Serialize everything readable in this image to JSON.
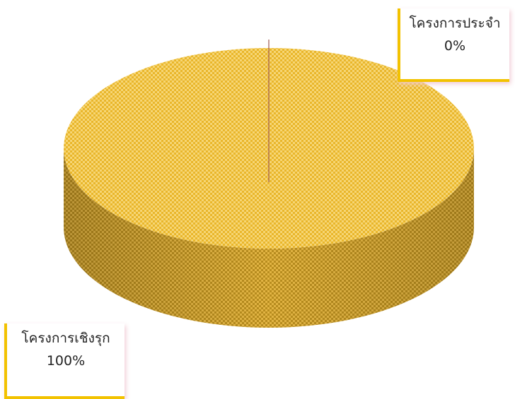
{
  "chart_data": {
    "type": "pie",
    "categories": [
      "โครงการเชิงรุก",
      "โครงการประจำ"
    ],
    "values": [
      100,
      0
    ],
    "data_labels": [
      {
        "name": "โครงการเชิงรุก",
        "percent": "100%"
      },
      {
        "name": "โครงการประจำ",
        "percent": "0%"
      }
    ],
    "style": "3d",
    "fill_color": "#f0c43a",
    "fill_color_dark": "#c99b20",
    "pattern": "checkered",
    "leader_line_color": "#a05a50",
    "label_border_color": "#f2c200"
  }
}
